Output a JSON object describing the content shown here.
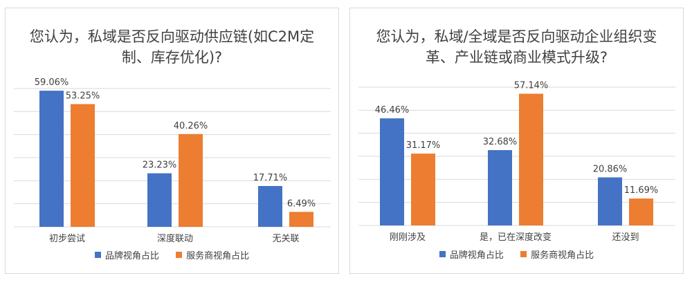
{
  "colors": {
    "brand": "#4472c4",
    "service": "#ed7d31",
    "grid": "#d9d9d9",
    "text": "#404040"
  },
  "chart_data": [
    {
      "type": "bar",
      "title_lines": [
        "您认为，私域是否反向驱动供应链(如C2M定",
        "制、库存优化)?"
      ],
      "categories": [
        "初步尝试",
        "深度联动",
        "无关联"
      ],
      "series": [
        {
          "name": "品牌视角占比",
          "values": [
            59.06,
            23.23,
            17.71
          ],
          "labels": [
            "59.06%",
            "23.23%",
            "17.71%"
          ]
        },
        {
          "name": "服务商视角占比",
          "values": [
            53.25,
            40.26,
            6.49
          ],
          "labels": [
            "53.25%",
            "40.26%",
            "6.49%"
          ]
        }
      ],
      "ylim": [
        0,
        60
      ],
      "grid": true,
      "legend": "bottom"
    },
    {
      "type": "bar",
      "title_lines": [
        "您认为，私域/全域是否反向驱动企业组织变",
        "革、产业链或商业模式升级?"
      ],
      "categories": [
        "刚刚涉及",
        "是，已在深度改变",
        "还没到"
      ],
      "series": [
        {
          "name": "品牌视角占比",
          "values": [
            46.46,
            32.68,
            20.86
          ],
          "labels": [
            "46.46%",
            "32.68%",
            "20.86%"
          ]
        },
        {
          "name": "服务商视角占比",
          "values": [
            31.17,
            57.14,
            11.69
          ],
          "labels": [
            "31.17%",
            "57.14%",
            "11.69%"
          ]
        }
      ],
      "ylim": [
        0,
        60
      ],
      "grid": true,
      "legend": "bottom"
    }
  ]
}
